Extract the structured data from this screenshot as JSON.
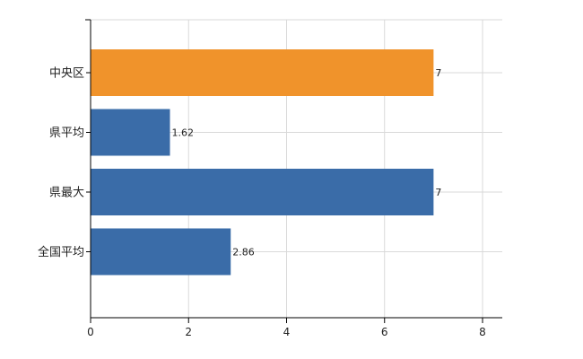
{
  "chart_data": {
    "type": "bar",
    "orientation": "horizontal",
    "categories": [
      "中央区",
      "県平均",
      "県最大",
      "全国平均"
    ],
    "values": [
      7,
      1.62,
      7,
      2.86
    ],
    "value_labels": [
      "7",
      "1.62",
      "7",
      "2.86"
    ],
    "bar_colors": [
      "#f0932b",
      "#3a6ca8",
      "#3a6ca8",
      "#3a6ca8"
    ],
    "xlim": [
      0,
      8
    ],
    "x_ticks": [
      0,
      2,
      4,
      6,
      8
    ],
    "grid": true,
    "title": "",
    "xlabel": "",
    "ylabel": ""
  }
}
